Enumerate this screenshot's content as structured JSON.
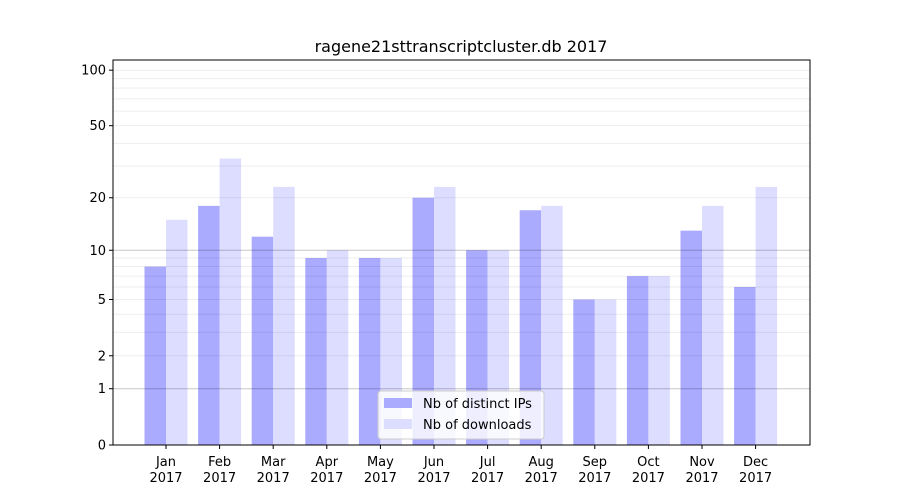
{
  "chart_data": {
    "type": "bar",
    "title": "ragene21sttranscriptcluster.db 2017",
    "xlabel": "",
    "ylabel": "",
    "yscale": "log10(1+y)",
    "ylim": [
      0,
      110
    ],
    "yticks": [
      0,
      1,
      2,
      5,
      10,
      20,
      50,
      100
    ],
    "grid": true,
    "legend_position": "bottom-center",
    "categories": [
      "Jan\n2017",
      "Feb\n2017",
      "Mar\n2017",
      "Apr\n2017",
      "May\n2017",
      "Jun\n2017",
      "Jul\n2017",
      "Aug\n2017",
      "Sep\n2017",
      "Oct\n2017",
      "Nov\n2017",
      "Dec\n2017"
    ],
    "series": [
      {
        "name": "Nb of distinct IPs",
        "color": "#aaaaff",
        "values": [
          8,
          18,
          12,
          9,
          9,
          20,
          10,
          17,
          5,
          7,
          13,
          6
        ]
      },
      {
        "name": "Nb of downloads",
        "color": "#ddddff",
        "values": [
          15,
          33,
          23,
          10,
          9,
          23,
          10,
          18,
          5,
          7,
          18,
          23
        ]
      }
    ]
  }
}
